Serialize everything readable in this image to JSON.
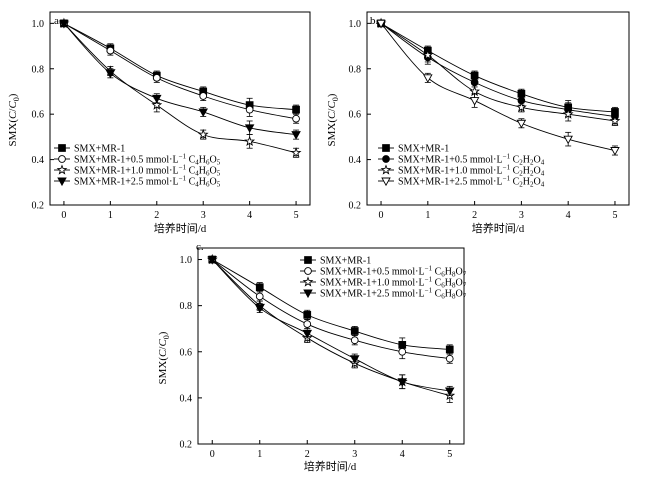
{
  "chart_data": [
    {
      "type": "line",
      "panel_label": "a.",
      "xlabel": "培养时间/d",
      "ylabel": "SMX(C/C0)",
      "x": [
        0,
        1,
        2,
        3,
        4,
        5
      ],
      "xlim": [
        -0.3,
        5.3
      ],
      "ylim": [
        0.2,
        1.05
      ],
      "xticks": [
        0,
        1,
        2,
        3,
        4,
        5
      ],
      "yticks": [
        0.2,
        0.4,
        0.6,
        0.8,
        1.0
      ],
      "legend_position": "bottom-left",
      "series": [
        {
          "name": "SMX+MR-1",
          "label_main": "SMX+MR-1",
          "label_unit": "",
          "label_sub": [],
          "marker": "square-filled",
          "values": [
            1.0,
            0.89,
            0.77,
            0.7,
            0.64,
            0.62
          ],
          "errors": [
            0.01,
            0.02,
            0.02,
            0.02,
            0.03,
            0.02
          ]
        },
        {
          "name": "SMX+MR-1+0.5 mmol·L⁻¹ C4H6O5",
          "label_main": "SMX+MR-1+0.5 mmol·L",
          "label_unit": "−1",
          "label_sub": [
            "C",
            "4",
            "H",
            "6",
            "O",
            "5"
          ],
          "marker": "circle-open",
          "values": [
            1.0,
            0.88,
            0.76,
            0.68,
            0.62,
            0.58
          ],
          "errors": [
            0.01,
            0.02,
            0.02,
            0.02,
            0.03,
            0.02
          ]
        },
        {
          "name": "SMX+MR-1+1.0 mmol·L⁻¹ C4H6O5",
          "label_main": "SMX+MR-1+1.0 mmol·L",
          "label_unit": "−1",
          "label_sub": [
            "C",
            "4",
            "H",
            "6",
            "O",
            "5"
          ],
          "marker": "star-open",
          "values": [
            1.0,
            0.79,
            0.64,
            0.51,
            0.48,
            0.43
          ],
          "errors": [
            0.01,
            0.02,
            0.03,
            0.02,
            0.03,
            0.02
          ]
        },
        {
          "name": "SMX+MR-1+2.5 mmol·L⁻¹ C4H6O5",
          "label_main": "SMX+MR-1+2.5 mmol·L",
          "label_unit": "−1",
          "label_sub": [
            "C",
            "4",
            "H",
            "6",
            "O",
            "5"
          ],
          "marker": "triangle-down-filled",
          "values": [
            1.0,
            0.78,
            0.67,
            0.61,
            0.54,
            0.51
          ],
          "errors": [
            0.01,
            0.02,
            0.02,
            0.02,
            0.03,
            0.02
          ]
        }
      ]
    },
    {
      "type": "line",
      "panel_label": "b.",
      "xlabel": "培养时间/d",
      "ylabel": "SMX(C/C0)",
      "x": [
        0,
        1,
        2,
        3,
        4,
        5
      ],
      "xlim": [
        -0.3,
        5.3
      ],
      "ylim": [
        0.2,
        1.05
      ],
      "xticks": [
        0,
        1,
        2,
        3,
        4,
        5
      ],
      "yticks": [
        0.2,
        0.4,
        0.6,
        0.8,
        1.0
      ],
      "legend_position": "bottom-left",
      "series": [
        {
          "name": "SMX+MR-1",
          "label_main": "SMX+MR-1",
          "label_unit": "",
          "label_sub": [],
          "marker": "square-filled",
          "values": [
            1.0,
            0.88,
            0.77,
            0.69,
            0.63,
            0.61
          ],
          "errors": [
            0.01,
            0.02,
            0.02,
            0.02,
            0.03,
            0.02
          ]
        },
        {
          "name": "SMX+MR-1+0.5 mmol·L⁻¹ C2H2O4",
          "label_main": "SMX+MR-1+0.5 mmol·L",
          "label_unit": "−1",
          "label_sub": [
            "C",
            "2",
            "H",
            "2",
            "O",
            "4"
          ],
          "marker": "circle-filled",
          "values": [
            1.0,
            0.85,
            0.74,
            0.66,
            0.62,
            0.59
          ],
          "errors": [
            0.01,
            0.03,
            0.02,
            0.02,
            0.03,
            0.02
          ]
        },
        {
          "name": "SMX+MR-1+1.0 mmol·L⁻¹ C2H2O4",
          "label_main": "SMX+MR-1+1.0 mmol·L",
          "label_unit": "−1",
          "label_sub": [
            "C",
            "2",
            "H",
            "2",
            "O",
            "4"
          ],
          "marker": "star-open",
          "values": [
            1.0,
            0.86,
            0.7,
            0.63,
            0.6,
            0.57
          ],
          "errors": [
            0.01,
            0.03,
            0.03,
            0.02,
            0.03,
            0.02
          ]
        },
        {
          "name": "SMX+MR-1+2.5 mmol·L⁻¹ C2H2O4",
          "label_main": "SMX+MR-1+2.5 mmol·L",
          "label_unit": "−1",
          "label_sub": [
            "C",
            "2",
            "H",
            "2",
            "O",
            "4"
          ],
          "marker": "triangle-down-open",
          "values": [
            1.0,
            0.76,
            0.66,
            0.56,
            0.49,
            0.44
          ],
          "errors": [
            0.01,
            0.02,
            0.03,
            0.02,
            0.03,
            0.02
          ]
        }
      ]
    },
    {
      "type": "line",
      "panel_label": "c.",
      "xlabel": "培养时间/d",
      "ylabel": "SMX(C/C0)",
      "x": [
        0,
        1,
        2,
        3,
        4,
        5
      ],
      "xlim": [
        -0.3,
        5.3
      ],
      "ylim": [
        0.2,
        1.05
      ],
      "xticks": [
        0,
        1,
        2,
        3,
        4,
        5
      ],
      "yticks": [
        0.2,
        0.4,
        0.6,
        0.8,
        1.0
      ],
      "legend_position": "top-right",
      "series": [
        {
          "name": "SMX+MR-1",
          "label_main": "SMX+MR-1",
          "label_unit": "",
          "label_sub": [],
          "marker": "square-filled",
          "values": [
            1.0,
            0.88,
            0.76,
            0.69,
            0.63,
            0.61
          ],
          "errors": [
            0.01,
            0.02,
            0.02,
            0.02,
            0.03,
            0.02
          ]
        },
        {
          "name": "SMX+MR-1+0.5 mmol·L⁻¹ C6H8O7",
          "label_main": "SMX+MR-1+0.5 mmol·L",
          "label_unit": "−1",
          "label_sub": [
            "C",
            "6",
            "H",
            "8",
            "O",
            "7"
          ],
          "marker": "circle-open",
          "values": [
            1.0,
            0.84,
            0.72,
            0.65,
            0.6,
            0.57
          ],
          "errors": [
            0.01,
            0.02,
            0.02,
            0.02,
            0.03,
            0.02
          ]
        },
        {
          "name": "SMX+MR-1+1.0 mmol·L⁻¹ C6H8O7",
          "label_main": "SMX+MR-1+1.0 mmol·L",
          "label_unit": "−1",
          "label_sub": [
            "C",
            "6",
            "H",
            "8",
            "O",
            "7"
          ],
          "marker": "star-open",
          "values": [
            1.0,
            0.8,
            0.66,
            0.55,
            0.47,
            0.41
          ],
          "errors": [
            0.01,
            0.02,
            0.02,
            0.02,
            0.03,
            0.03
          ]
        },
        {
          "name": "SMX+MR-1+2.5 mmol·L⁻¹ C6H8O7",
          "label_main": "SMX+MR-1+2.5 mmol·L",
          "label_unit": "−1",
          "label_sub": [
            "C",
            "6",
            "H",
            "8",
            "O",
            "7"
          ],
          "marker": "triangle-down-filled",
          "values": [
            1.0,
            0.79,
            0.68,
            0.57,
            0.47,
            0.43
          ],
          "errors": [
            0.01,
            0.02,
            0.02,
            0.02,
            0.03,
            0.02
          ]
        }
      ]
    }
  ]
}
